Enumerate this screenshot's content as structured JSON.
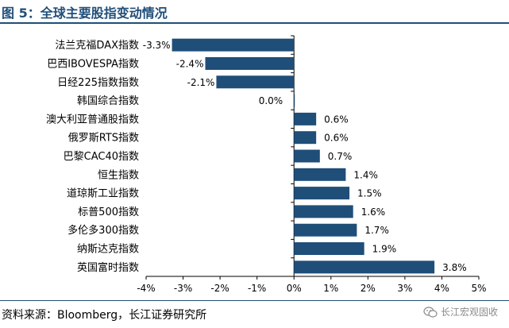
{
  "header": {
    "title": "图 5：全球主要股指变动情况"
  },
  "footer": {
    "source": "资料来源：Bloomberg，长江证券研究所",
    "watermark": "长江宏观固收",
    "watermark_icon": "wechat-icon"
  },
  "chart_data": {
    "type": "bar",
    "orientation": "horizontal",
    "title": "",
    "xlabel": "",
    "ylabel": "",
    "bar_color": "#1f4e79",
    "categories": [
      "法兰克福DAX指数",
      "巴西IBOVESPA指数",
      "日经225指数指数",
      "韩国综合指数",
      "澳大利亚普通股指数",
      "俄罗斯RTS指数",
      "巴黎CAC40指数",
      "恒生指数",
      "道琼斯工业指数",
      "标普500指数",
      "多伦多300指数",
      "纳斯达克指数",
      "英国富时指数"
    ],
    "values": [
      -3.3,
      -2.4,
      -2.1,
      0.0,
      0.6,
      0.6,
      0.7,
      1.4,
      1.5,
      1.6,
      1.7,
      1.9,
      3.8
    ],
    "value_labels": [
      "-3.3%",
      "-2.4%",
      "-2.1%",
      "0.0%",
      "0.6%",
      "0.6%",
      "0.7%",
      "1.4%",
      "1.5%",
      "1.6%",
      "1.7%",
      "1.9%",
      "3.8%"
    ],
    "xlim": [
      -4,
      5
    ],
    "xticks": [
      -4,
      -3,
      -2,
      -1,
      0,
      1,
      2,
      3,
      4,
      5
    ],
    "xtick_labels": [
      "-4%",
      "-3%",
      "-2%",
      "-1%",
      "0%",
      "1%",
      "2%",
      "3%",
      "4%",
      "5%"
    ],
    "grid": false,
    "legend": "none"
  }
}
